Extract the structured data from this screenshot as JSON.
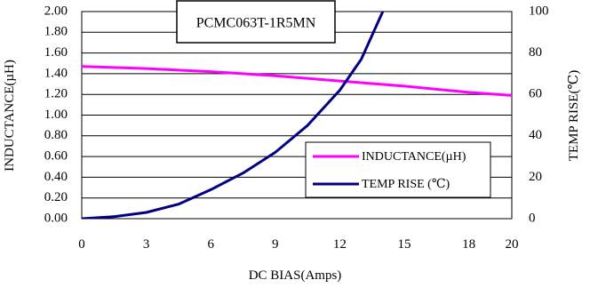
{
  "chart_data": {
    "type": "line",
    "title": "PCMC063T-1R5MN",
    "xlabel": "DC BIAS(Amps)",
    "ylabel": "INDUCTANCE(µH)",
    "y2label": "TEMP RISE(℃)",
    "xlim": [
      0,
      20
    ],
    "ylim": [
      0,
      2.0
    ],
    "y2lim": [
      0,
      100
    ],
    "x_ticks": [
      "0",
      "3",
      "6",
      "9",
      "12",
      "15",
      "18",
      "20"
    ],
    "x_tick_values": [
      0,
      3,
      6,
      9,
      12,
      15,
      18,
      20
    ],
    "y_ticks": [
      "0.00",
      "0.20",
      "0.40",
      "0.60",
      "0.80",
      "1.00",
      "1.20",
      "1.40",
      "1.60",
      "1.80",
      "2.00"
    ],
    "y2_ticks": [
      "0",
      "20",
      "40",
      "60",
      "80",
      "100"
    ],
    "grid": true,
    "legend_position": "lower-right",
    "series": [
      {
        "name": "INDUCTANCE(µH)",
        "axis": "left",
        "color": "#ff00ff",
        "x": [
          0,
          3,
          6,
          9,
          12,
          15,
          18,
          20
        ],
        "y": [
          1.47,
          1.45,
          1.42,
          1.38,
          1.33,
          1.28,
          1.22,
          1.19
        ]
      },
      {
        "name": "TEMP RISE (℃)",
        "axis": "right",
        "color": "#000080",
        "x": [
          0,
          1.5,
          3,
          4.5,
          6,
          7.5,
          9,
          10.5,
          12,
          13,
          14
        ],
        "y": [
          0,
          1,
          3,
          7,
          14,
          22,
          32,
          45,
          62,
          77,
          100
        ]
      }
    ]
  }
}
